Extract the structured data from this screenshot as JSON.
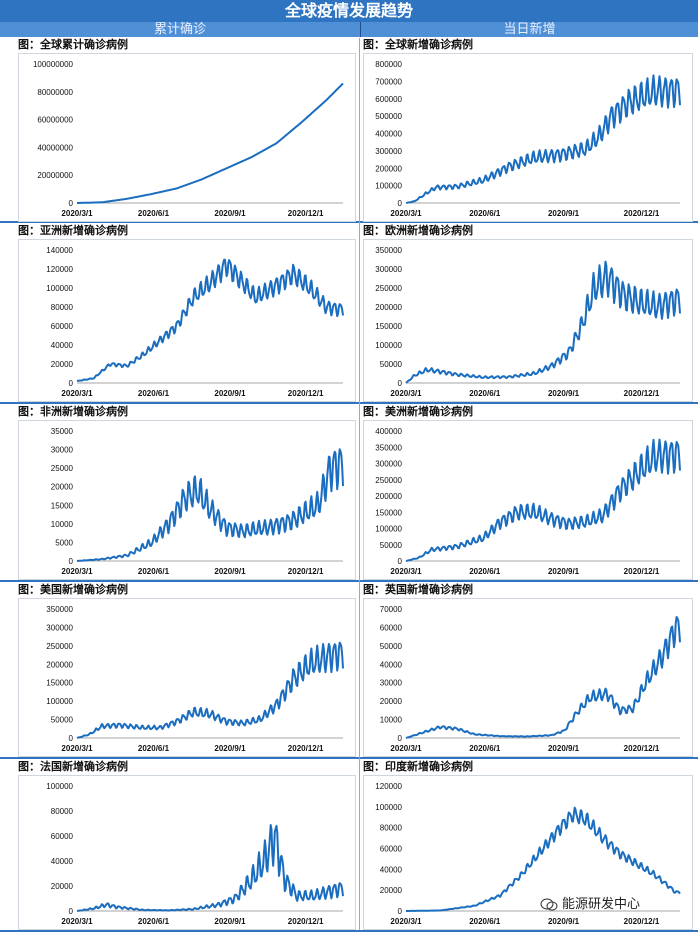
{
  "page_title": "全球疫情发展趋势",
  "left_header": "累计确诊",
  "right_header": "当日新增",
  "watermark": "能源研发中心",
  "line_color": "#1a6dbf",
  "chart_data": [
    {
      "id": "c0",
      "type": "line",
      "title": "图：全球累计确诊病例",
      "ylim": [
        0,
        100000000
      ],
      "ytick_step": 20000000,
      "x_ticks": [
        "2020/3/1",
        "2020/6/1",
        "2020/9/1",
        "2020/12/1"
      ],
      "anchors": [
        [
          0,
          0
        ],
        [
          30,
          500000
        ],
        [
          60,
          3000000
        ],
        [
          90,
          6500000
        ],
        [
          120,
          10500000
        ],
        [
          150,
          17000000
        ],
        [
          180,
          25000000
        ],
        [
          210,
          33000000
        ],
        [
          240,
          43000000
        ],
        [
          270,
          58000000
        ],
        [
          300,
          74000000
        ],
        [
          320,
          86000000
        ]
      ],
      "osc": 0
    },
    {
      "id": "c1",
      "type": "line",
      "title": "图：全球新增确诊病例",
      "ylim": [
        0,
        800000
      ],
      "ytick_step": 100000,
      "x_ticks": [
        "2020/3/1",
        "2020/6/1",
        "2020/9/1",
        "2020/12/1"
      ],
      "anchors": [
        [
          0,
          0
        ],
        [
          10,
          10000
        ],
        [
          25,
          60000
        ],
        [
          35,
          90000
        ],
        [
          60,
          95000
        ],
        [
          90,
          130000
        ],
        [
          120,
          210000
        ],
        [
          150,
          260000
        ],
        [
          180,
          280000
        ],
        [
          210,
          310000
        ],
        [
          225,
          380000
        ],
        [
          240,
          500000
        ],
        [
          260,
          580000
        ],
        [
          290,
          640000
        ],
        [
          315,
          650000
        ]
      ],
      "osc": 0.12
    },
    {
      "id": "c2",
      "type": "line",
      "title": "图：亚洲新增确诊病例",
      "ylim": [
        0,
        140000
      ],
      "ytick_step": 20000,
      "x_ticks": [
        "2020/3/1",
        "2020/6/1",
        "2020/9/1",
        "2020/12/1"
      ],
      "anchors": [
        [
          0,
          2000
        ],
        [
          20,
          5000
        ],
        [
          40,
          20000
        ],
        [
          60,
          18000
        ],
        [
          80,
          30000
        ],
        [
          100,
          45000
        ],
        [
          120,
          60000
        ],
        [
          140,
          90000
        ],
        [
          160,
          105000
        ],
        [
          180,
          125000
        ],
        [
          195,
          110000
        ],
        [
          215,
          90000
        ],
        [
          235,
          100000
        ],
        [
          260,
          115000
        ],
        [
          280,
          100000
        ],
        [
          300,
          80000
        ],
        [
          315,
          78000
        ]
      ],
      "osc": 0.08
    },
    {
      "id": "c3",
      "type": "line",
      "title": "图：欧洲新增确诊病例",
      "ylim": [
        0,
        350000
      ],
      "ytick_step": 50000,
      "x_ticks": [
        "2020/3/1",
        "2020/6/1",
        "2020/9/1",
        "2020/12/1"
      ],
      "anchors": [
        [
          0,
          0
        ],
        [
          10,
          20000
        ],
        [
          25,
          35000
        ],
        [
          40,
          30000
        ],
        [
          60,
          22000
        ],
        [
          90,
          15000
        ],
        [
          120,
          16000
        ],
        [
          150,
          25000
        ],
        [
          170,
          45000
        ],
        [
          190,
          80000
        ],
        [
          205,
          150000
        ],
        [
          220,
          250000
        ],
        [
          235,
          280000
        ],
        [
          255,
          230000
        ],
        [
          275,
          210000
        ],
        [
          295,
          200000
        ],
        [
          315,
          220000
        ]
      ],
      "osc": 0.15
    },
    {
      "id": "c4",
      "type": "line",
      "title": "图：非洲新增确诊病例",
      "ylim": [
        0,
        35000
      ],
      "ytick_step": 5000,
      "x_ticks": [
        "2020/3/1",
        "2020/6/1",
        "2020/9/1",
        "2020/12/1"
      ],
      "anchors": [
        [
          0,
          0
        ],
        [
          30,
          500
        ],
        [
          60,
          1500
        ],
        [
          90,
          5000
        ],
        [
          110,
          10000
        ],
        [
          130,
          17000
        ],
        [
          145,
          19000
        ],
        [
          160,
          14000
        ],
        [
          180,
          9000
        ],
        [
          200,
          8000
        ],
        [
          230,
          9000
        ],
        [
          260,
          11000
        ],
        [
          290,
          15000
        ],
        [
          305,
          25000
        ],
        [
          315,
          26000
        ]
      ],
      "osc": 0.2
    },
    {
      "id": "c5",
      "type": "line",
      "title": "图：美洲新增确诊病例",
      "ylim": [
        0,
        400000
      ],
      "ytick_step": 50000,
      "x_ticks": [
        "2020/3/1",
        "2020/6/1",
        "2020/9/1",
        "2020/12/1"
      ],
      "anchors": [
        [
          0,
          0
        ],
        [
          15,
          10000
        ],
        [
          30,
          35000
        ],
        [
          60,
          45000
        ],
        [
          90,
          70000
        ],
        [
          110,
          120000
        ],
        [
          130,
          150000
        ],
        [
          150,
          150000
        ],
        [
          170,
          130000
        ],
        [
          190,
          115000
        ],
        [
          210,
          120000
        ],
        [
          230,
          140000
        ],
        [
          250,
          220000
        ],
        [
          270,
          270000
        ],
        [
          290,
          320000
        ],
        [
          315,
          330000
        ]
      ],
      "osc": 0.14
    },
    {
      "id": "c6",
      "type": "line",
      "title": "图：美国新增确诊病例",
      "ylim": [
        0,
        350000
      ],
      "ytick_step": 50000,
      "x_ticks": [
        "2020/3/1",
        "2020/6/1",
        "2020/9/1",
        "2020/12/1"
      ],
      "anchors": [
        [
          0,
          0
        ],
        [
          15,
          10000
        ],
        [
          30,
          32000
        ],
        [
          50,
          35000
        ],
        [
          80,
          28000
        ],
        [
          100,
          28000
        ],
        [
          120,
          45000
        ],
        [
          140,
          70000
        ],
        [
          160,
          65000
        ],
        [
          180,
          45000
        ],
        [
          200,
          40000
        ],
        [
          220,
          50000
        ],
        [
          240,
          90000
        ],
        [
          260,
          160000
        ],
        [
          280,
          200000
        ],
        [
          300,
          220000
        ],
        [
          315,
          230000
        ]
      ],
      "osc": 0.16
    },
    {
      "id": "c7",
      "type": "line",
      "title": "图：英国新增确诊病例",
      "ylim": [
        0,
        70000
      ],
      "ytick_step": 10000,
      "x_ticks": [
        "2020/3/1",
        "2020/6/1",
        "2020/9/1",
        "2020/12/1"
      ],
      "anchors": [
        [
          0,
          0
        ],
        [
          20,
          3000
        ],
        [
          40,
          6000
        ],
        [
          60,
          5000
        ],
        [
          80,
          2000
        ],
        [
          110,
          1000
        ],
        [
          140,
          800
        ],
        [
          170,
          1500
        ],
        [
          185,
          4000
        ],
        [
          200,
          14000
        ],
        [
          215,
          22000
        ],
        [
          235,
          24000
        ],
        [
          250,
          15000
        ],
        [
          265,
          16000
        ],
        [
          280,
          30000
        ],
        [
          300,
          45000
        ],
        [
          315,
          60000
        ]
      ],
      "osc": 0.12
    },
    {
      "id": "c8",
      "type": "line",
      "title": "图：法国新增确诊病例",
      "ylim": [
        0,
        100000
      ],
      "ytick_step": 20000,
      "x_ticks": [
        "2020/3/1",
        "2020/6/1",
        "2020/9/1",
        "2020/12/1"
      ],
      "anchors": [
        [
          0,
          0
        ],
        [
          20,
          2000
        ],
        [
          35,
          5000
        ],
        [
          50,
          3000
        ],
        [
          80,
          800
        ],
        [
          110,
          500
        ],
        [
          140,
          1500
        ],
        [
          170,
          5000
        ],
        [
          190,
          10000
        ],
        [
          210,
          25000
        ],
        [
          225,
          40000
        ],
        [
          238,
          60000
        ],
        [
          250,
          25000
        ],
        [
          265,
          12000
        ],
        [
          285,
          12000
        ],
        [
          300,
          15000
        ],
        [
          315,
          18000
        ]
      ],
      "osc": 0.3
    },
    {
      "id": "c9",
      "type": "line",
      "title": "图：印度新增确诊病例",
      "ylim": [
        0,
        120000
      ],
      "ytick_step": 20000,
      "x_ticks": [
        "2020/3/1",
        "2020/6/1",
        "2020/9/1",
        "2020/12/1"
      ],
      "anchors": [
        [
          0,
          0
        ],
        [
          40,
          500
        ],
        [
          80,
          5000
        ],
        [
          110,
          15000
        ],
        [
          135,
          35000
        ],
        [
          160,
          60000
        ],
        [
          180,
          80000
        ],
        [
          195,
          93000
        ],
        [
          210,
          88000
        ],
        [
          230,
          70000
        ],
        [
          250,
          55000
        ],
        [
          270,
          45000
        ],
        [
          290,
          35000
        ],
        [
          305,
          25000
        ],
        [
          315,
          18000
        ]
      ],
      "osc": 0.07
    }
  ]
}
